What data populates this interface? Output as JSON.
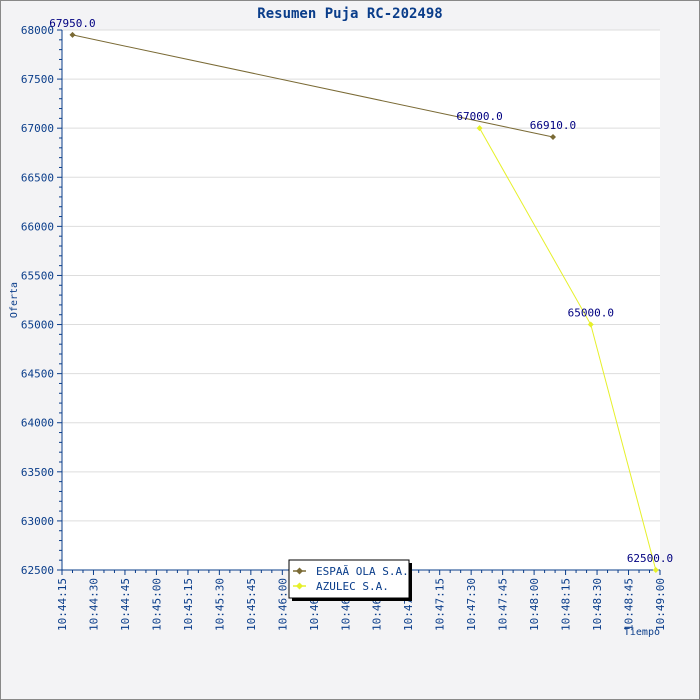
{
  "chart_data": {
    "type": "line",
    "title": "Resumen Puja RC-202498",
    "xlabel": "Tiempo",
    "ylabel": "Oferta",
    "ylim": [
      62500,
      68000
    ],
    "yticks": [
      62500,
      63000,
      63500,
      64000,
      64500,
      65000,
      65500,
      66000,
      66500,
      67000,
      67500,
      68000
    ],
    "xlim": [
      "10:44:15",
      "10:49:00"
    ],
    "xticks": [
      "10:44:15",
      "10:44:30",
      "10:44:45",
      "10:45:00",
      "10:45:15",
      "10:45:30",
      "10:45:45",
      "10:46:00",
      "10:46:15",
      "10:46:30",
      "10:46:45",
      "10:47:00",
      "10:47:15",
      "10:47:30",
      "10:47:45",
      "10:48:00",
      "10:48:15",
      "10:48:30",
      "10:48:45",
      "10:49:00"
    ],
    "grid": true,
    "legend_position": "bottom-center",
    "series": [
      {
        "name": "ESPAÃ OLA S.A.",
        "color": "#7a6a35",
        "points": [
          {
            "x": "10:44:20",
            "y": 67950,
            "label": "67950.0"
          },
          {
            "x": "10:48:09",
            "y": 66910,
            "label": "66910.0"
          }
        ]
      },
      {
        "name": "AZULEC S.A.",
        "color": "#e6f02a",
        "points": [
          {
            "x": "10:47:34",
            "y": 67000,
            "label": "67000.0"
          },
          {
            "x": "10:48:27",
            "y": 65000,
            "label": "65000.0"
          },
          {
            "x": "10:48:58",
            "y": 62500,
            "label": "62500.0"
          }
        ]
      }
    ]
  }
}
